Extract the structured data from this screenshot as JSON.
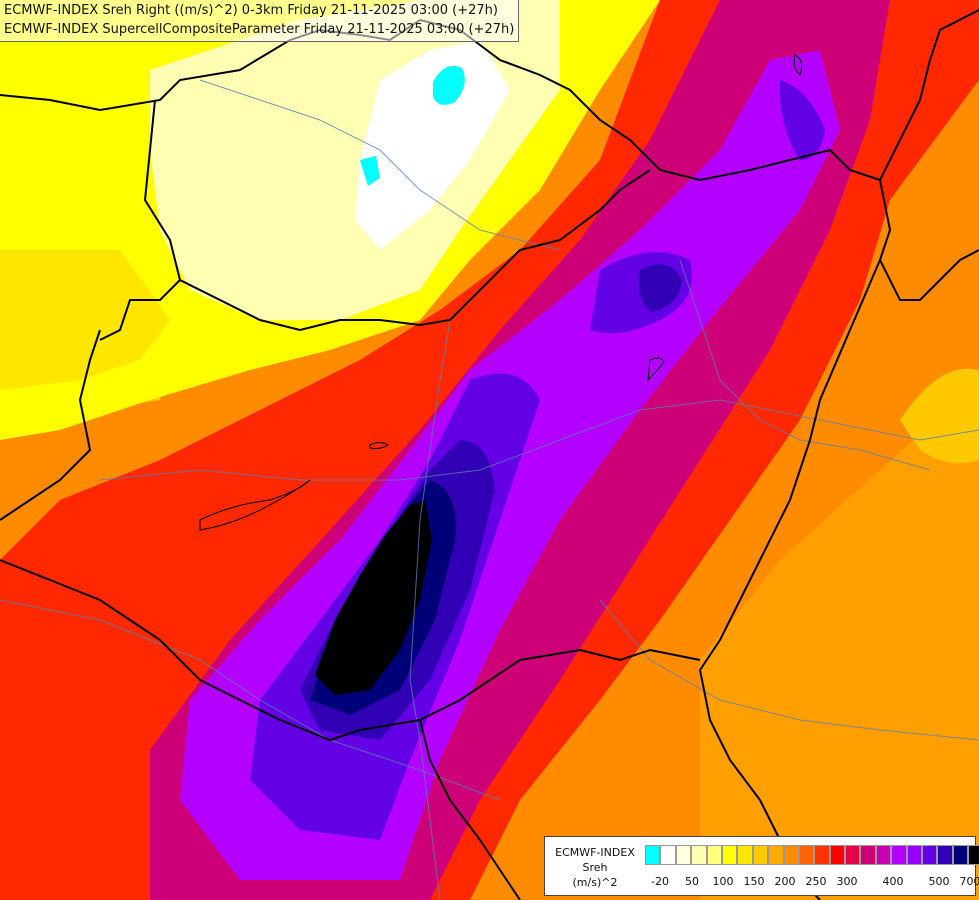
{
  "title": {
    "line1": "ECMWF-INDEX Sreh Right ((m/s)^2) 0-3km Friday 21-11-2025 03:00 (+27h)",
    "line2": "ECMWF-INDEX SupercellCompositeParameter Friday 21-11-2025 03:00 (+27h)"
  },
  "legend": {
    "line1": "ECMWF-INDEX",
    "line2": "Sreh",
    "line3": "(m/s)^2",
    "colors": [
      "#00ffff",
      "#ffffff",
      "#ffffe0",
      "#ffffb4",
      "#ffff78",
      "#ffff00",
      "#ffe600",
      "#ffc800",
      "#ffaa00",
      "#ff8c00",
      "#ff6400",
      "#ff3200",
      "#ff0000",
      "#e6004b",
      "#cd0078",
      "#c800b4",
      "#b400ff",
      "#9600ff",
      "#6400e6",
      "#3200b4",
      "#000078",
      "#000000"
    ],
    "tick_labels": [
      "-20",
      "50",
      "100",
      "150",
      "200",
      "250",
      "300",
      "400",
      "500",
      "700"
    ]
  },
  "map": {
    "palette": {
      "yellow": "#ffff00",
      "light_yellow": "#ffffb4",
      "white": "#ffffff",
      "cyan": "#00ffff",
      "orange": "#ff8c00",
      "red": "#ff0000",
      "magenta": "#cd0078",
      "violet": "#b400ff",
      "purple": "#6400e6",
      "navy": "#000078",
      "black": "#000000"
    }
  }
}
